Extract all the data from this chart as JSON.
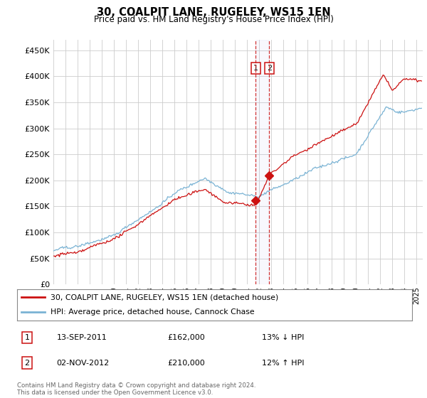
{
  "title": "30, COALPIT LANE, RUGELEY, WS15 1EN",
  "subtitle": "Price paid vs. HM Land Registry's House Price Index (HPI)",
  "ytick_values": [
    0,
    50000,
    100000,
    150000,
    200000,
    250000,
    300000,
    350000,
    400000,
    450000
  ],
  "ylim": [
    0,
    470000
  ],
  "xlim_start": 1995.0,
  "xlim_end": 2025.5,
  "hpi_color": "#7ab3d4",
  "price_color": "#cc1111",
  "sale1_year": 2011.7,
  "sale1_price": 162000,
  "sale2_year": 2012.83,
  "sale2_price": 210000,
  "legend_line1": "30, COALPIT LANE, RUGELEY, WS15 1EN (detached house)",
  "legend_line2": "HPI: Average price, detached house, Cannock Chase",
  "annotation1_date": "13-SEP-2011",
  "annotation1_price": "£162,000",
  "annotation1_hpi": "13% ↓ HPI",
  "annotation2_date": "02-NOV-2012",
  "annotation2_price": "£210,000",
  "annotation2_hpi": "12% ↑ HPI",
  "footer": "Contains HM Land Registry data © Crown copyright and database right 2024.\nThis data is licensed under the Open Government Licence v3.0.",
  "background_color": "#ffffff",
  "grid_color": "#cccccc",
  "box_color": "#cc1111"
}
